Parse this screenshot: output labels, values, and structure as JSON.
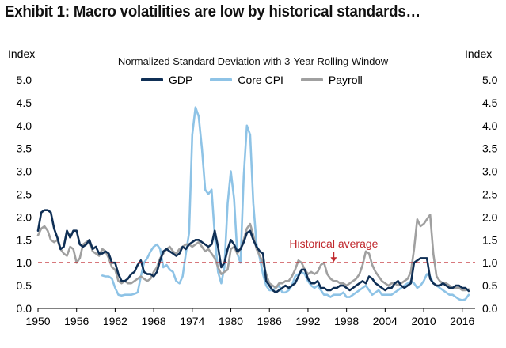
{
  "header": {
    "title": "Exhibit 1: Macro volatilities are low by historical standards…"
  },
  "chart_data": {
    "type": "line",
    "title": "Normalized Standard Deviation with 3-Year Rolling Window",
    "ylabel_left": "Index",
    "ylabel_right": "Index",
    "ylim": [
      0.0,
      5.0
    ],
    "xlim": [
      1950,
      2018
    ],
    "y_ticks": [
      "0.0",
      "0.5",
      "1.0",
      "1.5",
      "2.0",
      "2.5",
      "3.0",
      "3.5",
      "4.0",
      "4.5",
      "5.0"
    ],
    "x_ticks": [
      "1950",
      "1956",
      "1962",
      "1968",
      "1974",
      "1980",
      "1986",
      "1992",
      "1998",
      "2004",
      "2010",
      "2016"
    ],
    "reference_line": {
      "label": "Historical average",
      "value": 1.0,
      "color": "#c0282d",
      "style": "dashed"
    },
    "annotation": {
      "text": "Historical average",
      "arrow_at_x": 1996,
      "arrow_from_y": 0.78,
      "arrow_to_y": 1.0
    },
    "series": [
      {
        "name": "GDP",
        "color": "#0f2f55",
        "x": [
          1950,
          1950.5,
          1951,
          1951.5,
          1952,
          1952.5,
          1953,
          1953.5,
          1954,
          1954.5,
          1955,
          1955.5,
          1956,
          1956.5,
          1957,
          1957.5,
          1958,
          1958.5,
          1959,
          1959.5,
          1960,
          1960.5,
          1961,
          1961.5,
          1962,
          1962.5,
          1963,
          1963.5,
          1964,
          1964.5,
          1965,
          1965.5,
          1966,
          1966.5,
          1967,
          1967.5,
          1968,
          1968.5,
          1969,
          1969.5,
          1970,
          1970.5,
          1971,
          1971.5,
          1972,
          1972.5,
          1973,
          1973.5,
          1974,
          1974.5,
          1975,
          1975.5,
          1976,
          1976.5,
          1977,
          1977.5,
          1978,
          1978.5,
          1979,
          1979.5,
          1980,
          1980.5,
          1981,
          1981.5,
          1982,
          1982.5,
          1983,
          1983.5,
          1984,
          1984.5,
          1985,
          1985.5,
          1986,
          1986.5,
          1987,
          1987.5,
          1988,
          1988.5,
          1989,
          1989.5,
          1990,
          1990.5,
          1991,
          1991.5,
          1992,
          1992.5,
          1993,
          1993.5,
          1994,
          1994.5,
          1995,
          1995.5,
          1996,
          1996.5,
          1997,
          1997.5,
          1998,
          1998.5,
          1999,
          1999.5,
          2000,
          2000.5,
          2001,
          2001.5,
          2002,
          2002.5,
          2003,
          2003.5,
          2004,
          2004.5,
          2005,
          2005.5,
          2006,
          2006.5,
          2007,
          2007.5,
          2008,
          2008.5,
          2009,
          2009.5,
          2010,
          2010.5,
          2011,
          2011.5,
          2012,
          2012.5,
          2013,
          2013.5,
          2014,
          2014.5,
          2015,
          2015.5,
          2016,
          2016.5,
          2017
        ],
        "values": [
          1.7,
          2.1,
          2.15,
          2.15,
          2.1,
          1.75,
          1.55,
          1.3,
          1.35,
          1.7,
          1.55,
          1.7,
          1.7,
          1.4,
          1.35,
          1.4,
          1.5,
          1.3,
          1.35,
          1.2,
          1.2,
          1.25,
          1.2,
          1.0,
          1.0,
          0.75,
          0.6,
          0.6,
          0.65,
          0.75,
          0.8,
          0.95,
          1.05,
          0.8,
          0.75,
          0.75,
          0.7,
          0.8,
          1.05,
          1.25,
          1.3,
          1.25,
          1.2,
          1.15,
          1.2,
          1.35,
          1.3,
          1.4,
          1.45,
          1.5,
          1.5,
          1.45,
          1.4,
          1.35,
          1.4,
          1.7,
          1.35,
          0.9,
          1.0,
          1.3,
          1.5,
          1.4,
          1.25,
          1.3,
          1.45,
          1.65,
          1.7,
          1.5,
          1.35,
          1.25,
          1.2,
          0.6,
          0.5,
          0.4,
          0.35,
          0.4,
          0.45,
          0.5,
          0.45,
          0.5,
          0.55,
          0.7,
          0.85,
          0.85,
          0.65,
          0.55,
          0.55,
          0.6,
          0.45,
          0.45,
          0.4,
          0.4,
          0.45,
          0.45,
          0.5,
          0.5,
          0.45,
          0.4,
          0.45,
          0.5,
          0.55,
          0.6,
          0.55,
          0.7,
          0.65,
          0.55,
          0.5,
          0.45,
          0.4,
          0.45,
          0.45,
          0.55,
          0.6,
          0.5,
          0.45,
          0.5,
          0.55,
          1.0,
          1.05,
          1.1,
          1.1,
          1.1,
          0.65,
          0.55,
          0.5,
          0.5,
          0.55,
          0.5,
          0.45,
          0.45,
          0.5,
          0.5,
          0.45,
          0.45,
          0.38
        ]
      },
      {
        "name": "Core CPI",
        "color": "#8ec3e6",
        "x": [
          1960,
          1960.5,
          1961,
          1961.5,
          1962,
          1962.5,
          1963,
          1963.5,
          1964,
          1964.5,
          1965,
          1965.5,
          1966,
          1966.5,
          1967,
          1967.5,
          1968,
          1968.5,
          1969,
          1969.5,
          1970,
          1970.5,
          1971,
          1971.5,
          1972,
          1972.5,
          1973,
          1973.5,
          1974,
          1974.5,
          1975,
          1975.5,
          1976,
          1976.5,
          1977,
          1977.5,
          1978,
          1978.5,
          1979,
          1979.5,
          1980,
          1980.5,
          1981,
          1981.5,
          1982,
          1982.5,
          1983,
          1983.5,
          1984,
          1984.5,
          1985,
          1985.5,
          1986,
          1986.5,
          1987,
          1987.5,
          1988,
          1988.5,
          1989,
          1989.5,
          1990,
          1990.5,
          1991,
          1991.5,
          1992,
          1992.5,
          1993,
          1993.5,
          1994,
          1994.5,
          1995,
          1995.5,
          1996,
          1996.5,
          1997,
          1997.5,
          1998,
          1998.5,
          1999,
          1999.5,
          2000,
          2000.5,
          2001,
          2001.5,
          2002,
          2002.5,
          2003,
          2003.5,
          2004,
          2004.5,
          2005,
          2005.5,
          2006,
          2006.5,
          2007,
          2007.5,
          2008,
          2008.5,
          2009,
          2009.5,
          2010,
          2010.5,
          2011,
          2011.5,
          2012,
          2012.5,
          2013,
          2013.5,
          2014,
          2014.5,
          2015,
          2015.5,
          2016,
          2016.5,
          2017
        ],
        "values": [
          0.72,
          0.7,
          0.7,
          0.65,
          0.45,
          0.3,
          0.28,
          0.3,
          0.3,
          0.3,
          0.32,
          0.35,
          0.7,
          1.0,
          1.1,
          1.25,
          1.35,
          1.4,
          1.3,
          0.9,
          0.95,
          0.85,
          0.8,
          0.6,
          0.55,
          0.7,
          1.2,
          1.65,
          3.8,
          4.4,
          4.2,
          3.5,
          2.6,
          2.5,
          2.6,
          1.6,
          0.8,
          0.55,
          0.9,
          2.3,
          3.0,
          2.4,
          1.2,
          1.0,
          2.9,
          4.0,
          3.8,
          2.3,
          1.4,
          1.1,
          0.75,
          0.5,
          0.4,
          0.4,
          0.45,
          0.5,
          0.35,
          0.35,
          0.4,
          0.5,
          0.7,
          0.75,
          0.8,
          0.75,
          0.6,
          0.5,
          0.45,
          0.5,
          0.4,
          0.3,
          0.3,
          0.25,
          0.3,
          0.3,
          0.3,
          0.35,
          0.25,
          0.25,
          0.3,
          0.35,
          0.4,
          0.45,
          0.5,
          0.4,
          0.3,
          0.35,
          0.4,
          0.3,
          0.3,
          0.3,
          0.3,
          0.35,
          0.4,
          0.45,
          0.5,
          0.55,
          0.6,
          0.55,
          0.45,
          0.5,
          0.6,
          0.75,
          0.7,
          0.55,
          0.5,
          0.45,
          0.4,
          0.35,
          0.3,
          0.3,
          0.25,
          0.2,
          0.18,
          0.2,
          0.3
        ]
      },
      {
        "name": "Payroll",
        "color": "#a0a0a0",
        "x": [
          1950,
          1950.5,
          1951,
          1951.5,
          1952,
          1952.5,
          1953,
          1953.5,
          1954,
          1954.5,
          1955,
          1955.5,
          1956,
          1956.5,
          1957,
          1957.5,
          1958,
          1958.5,
          1959,
          1959.5,
          1960,
          1960.5,
          1961,
          1961.5,
          1962,
          1962.5,
          1963,
          1963.5,
          1964,
          1964.5,
          1965,
          1965.5,
          1966,
          1966.5,
          1967,
          1967.5,
          1968,
          1968.5,
          1969,
          1969.5,
          1970,
          1970.5,
          1971,
          1971.5,
          1972,
          1972.5,
          1973,
          1973.5,
          1974,
          1974.5,
          1975,
          1975.5,
          1976,
          1976.5,
          1977,
          1977.5,
          1978,
          1978.5,
          1979,
          1979.5,
          1980,
          1980.5,
          1981,
          1981.5,
          1982,
          1982.5,
          1983,
          1983.5,
          1984,
          1984.5,
          1985,
          1985.5,
          1986,
          1986.5,
          1987,
          1987.5,
          1988,
          1988.5,
          1989,
          1989.5,
          1990,
          1990.5,
          1991,
          1991.5,
          1992,
          1992.5,
          1993,
          1993.5,
          1994,
          1994.5,
          1995,
          1995.5,
          1996,
          1996.5,
          1997,
          1997.5,
          1998,
          1998.5,
          1999,
          1999.5,
          2000,
          2000.5,
          2001,
          2001.5,
          2002,
          2002.5,
          2003,
          2003.5,
          2004,
          2004.5,
          2005,
          2005.5,
          2006,
          2006.5,
          2007,
          2007.5,
          2008,
          2008.5,
          2009,
          2009.5,
          2010,
          2010.5,
          2011,
          2011.5,
          2012,
          2012.5,
          2013,
          2013.5,
          2014,
          2014.5,
          2015,
          2015.5,
          2016,
          2016.5,
          2017
        ],
        "values": [
          1.6,
          1.75,
          1.8,
          1.7,
          1.5,
          1.45,
          1.5,
          1.3,
          1.2,
          1.15,
          1.35,
          1.3,
          1.0,
          1.1,
          1.4,
          1.45,
          1.5,
          1.25,
          1.2,
          1.15,
          1.3,
          1.25,
          1.1,
          0.9,
          0.85,
          0.6,
          0.55,
          0.6,
          0.55,
          0.55,
          0.6,
          0.65,
          0.7,
          0.65,
          0.6,
          0.65,
          0.8,
          0.9,
          1.1,
          1.2,
          1.3,
          1.35,
          1.25,
          1.2,
          1.3,
          1.35,
          1.4,
          1.4,
          1.35,
          1.4,
          1.45,
          1.35,
          1.25,
          1.3,
          1.2,
          1.1,
          0.9,
          0.75,
          0.8,
          0.85,
          1.3,
          1.35,
          1.2,
          1.3,
          1.5,
          1.75,
          1.85,
          1.6,
          1.3,
          1.15,
          1.0,
          0.75,
          0.55,
          0.5,
          0.45,
          0.55,
          0.55,
          0.6,
          0.6,
          0.7,
          0.85,
          1.05,
          1.0,
          0.85,
          0.75,
          0.8,
          0.75,
          0.8,
          0.95,
          1.0,
          0.75,
          0.65,
          0.6,
          0.6,
          0.55,
          0.55,
          0.5,
          0.55,
          0.6,
          0.65,
          0.75,
          0.95,
          1.25,
          1.2,
          0.95,
          0.8,
          0.7,
          0.6,
          0.55,
          0.5,
          0.55,
          0.55,
          0.5,
          0.55,
          0.6,
          0.65,
          0.8,
          1.3,
          1.95,
          1.8,
          1.85,
          1.95,
          2.05,
          1.2,
          0.7,
          0.6,
          0.55,
          0.55,
          0.5,
          0.45,
          0.45,
          0.45,
          0.4,
          0.4,
          0.42
        ]
      }
    ]
  }
}
